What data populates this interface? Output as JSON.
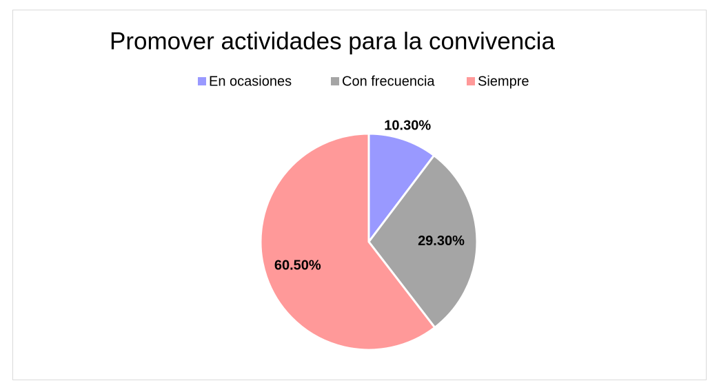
{
  "chart_data": {
    "type": "pie",
    "title": "Promover actividades para la convivencia",
    "categories": [
      "En ocasiones",
      "Con frecuencia",
      "Siempre"
    ],
    "values": [
      10.3,
      29.3,
      60.5
    ],
    "value_labels": [
      "10.30%",
      "29.30%",
      "60.50%"
    ],
    "colors": [
      "#9999ff",
      "#a5a5a5",
      "#ff9999"
    ],
    "legend": "top"
  }
}
